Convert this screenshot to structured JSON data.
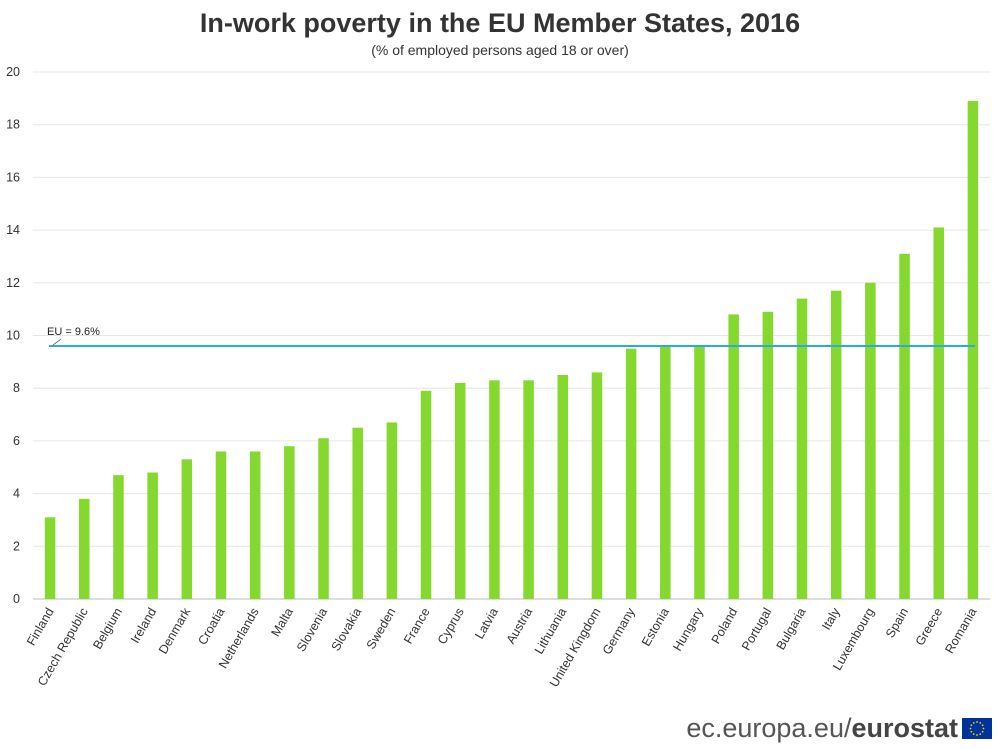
{
  "header": {
    "title": "In-work poverty in the EU Member States, 2016",
    "subtitle": "(% of employed persons aged 18 or over)"
  },
  "footer": {
    "domain": "ec.europa.eu/",
    "brand": "eurostat"
  },
  "chart_data": {
    "type": "bar",
    "title": "In-work poverty in the EU Member States, 2016",
    "subtitle": "(% of employed persons aged 18 or over)",
    "categories": [
      "Finland",
      "Czech Republic",
      "Belgium",
      "Ireland",
      "Denmark",
      "Croatia",
      "Netherlands",
      "Malta",
      "Slovenia",
      "Slovakia",
      "Sweden",
      "France",
      "Cyprus",
      "Latvia",
      "Austria",
      "Lithuania",
      "United Kingdom",
      "Germany",
      "Estonia",
      "Hungary",
      "Poland",
      "Portugal",
      "Bulgaria",
      "Italy",
      "Luxembourg",
      "Spain",
      "Greece",
      "Romania"
    ],
    "values": [
      3.1,
      3.8,
      4.7,
      4.8,
      5.3,
      5.6,
      5.6,
      5.8,
      6.1,
      6.5,
      6.7,
      7.9,
      8.2,
      8.3,
      8.3,
      8.5,
      8.6,
      9.5,
      9.6,
      9.6,
      10.8,
      10.9,
      11.4,
      11.7,
      12.0,
      13.1,
      14.1,
      18.9
    ],
    "ylim": [
      0,
      20
    ],
    "yticks": [
      0,
      2,
      4,
      6,
      8,
      10,
      12,
      14,
      16,
      18,
      20
    ],
    "grid": true,
    "bar_color": "#84d82e",
    "reference_line": {
      "label": "EU = 9.6%",
      "value": 9.6,
      "color": "#29abe2"
    }
  }
}
